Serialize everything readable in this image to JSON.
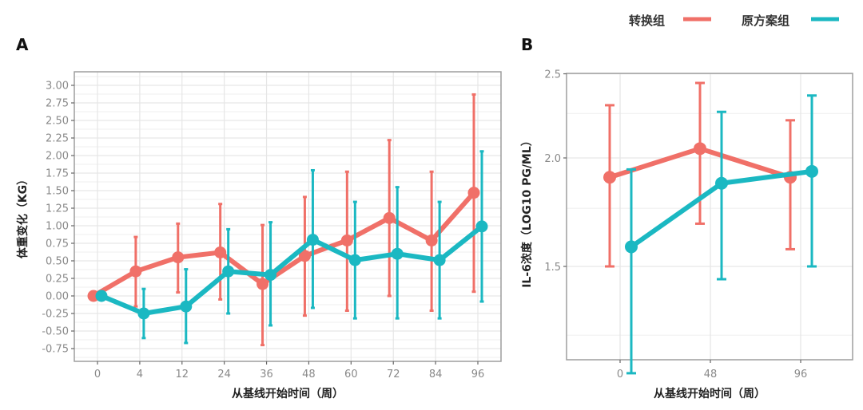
{
  "colors": {
    "switch": "#f07068",
    "original": "#1bb8c2",
    "grid": "#e6e6e6",
    "frame": "#9e9e9e"
  },
  "legend": {
    "items": [
      {
        "label": "转换组",
        "color": "#f07068"
      },
      {
        "label": "原方案组",
        "color": "#1bb8c2"
      }
    ],
    "position": "top-right"
  },
  "chart_data": [
    {
      "panel": "A",
      "type": "line",
      "title": "",
      "xlabel": "从基线开始时间（周）",
      "ylabel": "体重变化（KG）",
      "categories": [
        "0",
        "4",
        "12",
        "24",
        "36",
        "48",
        "60",
        "72",
        "84",
        "96"
      ],
      "ylim": [
        -0.85,
        3.2
      ],
      "yticks": [
        "3.00",
        "2.75",
        "2.50",
        "2.25",
        "2.00",
        "1.75",
        "1.50",
        "1.25",
        "1.00",
        "0.75",
        "0.50",
        "0.25",
        "0.00",
        "-0.25",
        "-0.50",
        "-0.75"
      ],
      "ytick_values": [
        3.0,
        2.75,
        2.5,
        2.25,
        2.0,
        1.75,
        1.5,
        1.25,
        1.0,
        0.75,
        0.5,
        0.25,
        0.0,
        -0.25,
        -0.5,
        -0.75
      ],
      "grid": true,
      "series": [
        {
          "name": "转换组",
          "values": [
            0.0,
            0.35,
            0.55,
            0.62,
            0.17,
            0.57,
            0.79,
            1.11,
            0.79,
            1.47
          ],
          "lower": [
            0.0,
            -0.15,
            0.05,
            -0.05,
            -0.7,
            -0.28,
            -0.21,
            0.0,
            -0.21,
            0.06
          ],
          "upper": [
            0.0,
            0.84,
            1.03,
            1.31,
            1.01,
            1.41,
            1.77,
            2.22,
            1.77,
            2.87
          ]
        },
        {
          "name": "原方案组",
          "values": [
            0.0,
            -0.25,
            -0.15,
            0.35,
            0.3,
            0.8,
            0.51,
            0.6,
            0.51,
            0.99
          ],
          "lower": [
            0.0,
            -0.6,
            -0.67,
            -0.25,
            -0.42,
            -0.17,
            -0.32,
            -0.32,
            -0.32,
            -0.08
          ],
          "upper": [
            0.0,
            0.1,
            0.38,
            0.95,
            1.05,
            1.79,
            1.34,
            1.55,
            1.34,
            2.06
          ]
        }
      ]
    },
    {
      "panel": "B",
      "type": "line",
      "title": "",
      "xlabel": "从基线开始时间（周）",
      "ylabel": "IL-6浓度（LOG10 PG/ML）",
      "categories": [
        "0",
        "48",
        "96"
      ],
      "yscale": "log",
      "ylim": [
        1.18,
        2.5
      ],
      "yticks": [
        "2.5",
        "2.0",
        "1.5"
      ],
      "ytick_values": [
        2.5,
        2.0,
        1.5
      ],
      "minor_gridlines": [
        2.25,
        1.75,
        1.25
      ],
      "grid": true,
      "series": [
        {
          "name": "转换组",
          "values": [
            1.9,
            2.05,
            1.9
          ],
          "lower": [
            1.5,
            1.68,
            1.57
          ],
          "upper": [
            2.3,
            2.44,
            2.21
          ]
        },
        {
          "name": "原方案组",
          "values": [
            1.58,
            1.87,
            1.93
          ],
          "lower": [
            1.13,
            1.45,
            1.5
          ],
          "upper": [
            1.94,
            2.26,
            2.36
          ]
        }
      ]
    }
  ],
  "panels": {
    "a_label": "A",
    "b_label": "B"
  }
}
